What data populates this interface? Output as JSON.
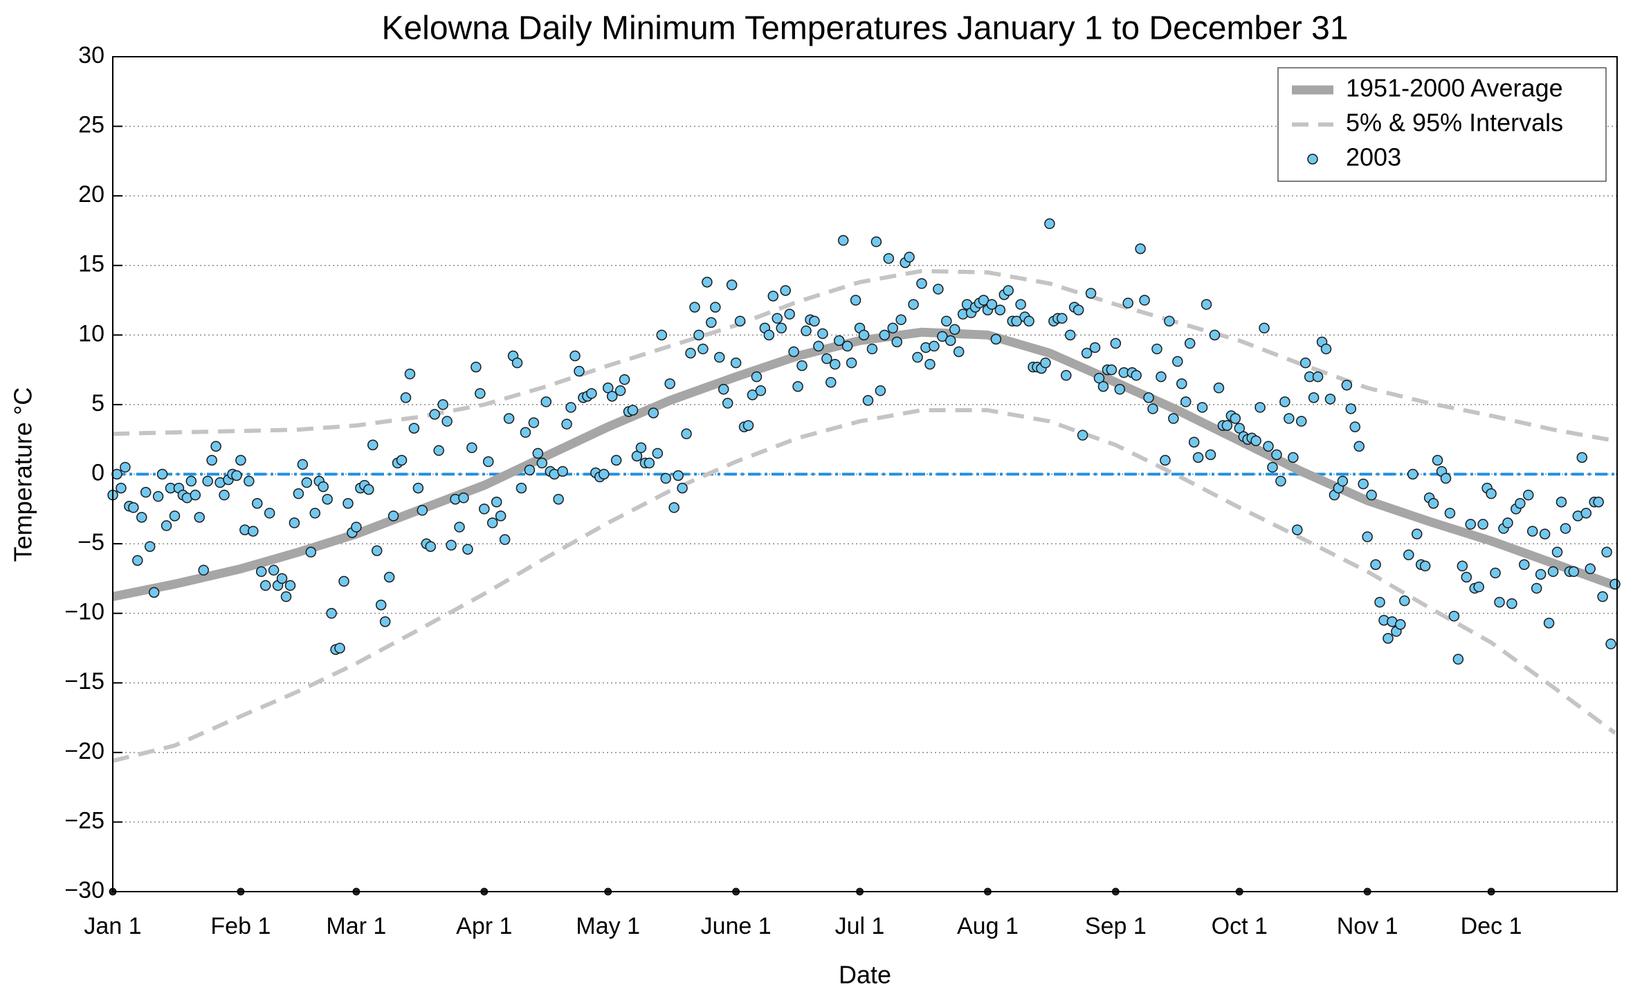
{
  "chart_data": {
    "type": "scatter",
    "title": "Kelowna Daily Minimum Temperatures January 1 to December 31",
    "xlabel": "Date",
    "ylabel": "Temperature °C",
    "xlim": [
      1,
      365.5
    ],
    "ylim": [
      -30,
      30
    ],
    "xticks": [
      {
        "value": 1,
        "label": "Jan 1"
      },
      {
        "value": 32,
        "label": "Feb 1"
      },
      {
        "value": 60,
        "label": "Mar 1"
      },
      {
        "value": 91,
        "label": "Apr 1"
      },
      {
        "value": 121,
        "label": "May 1"
      },
      {
        "value": 152,
        "label": "June 1"
      },
      {
        "value": 182,
        "label": "Jul 1"
      },
      {
        "value": 213,
        "label": "Aug 1"
      },
      {
        "value": 244,
        "label": "Sep 1"
      },
      {
        "value": 274,
        "label": "Oct 1"
      },
      {
        "value": 305,
        "label": "Nov 1"
      },
      {
        "value": 335,
        "label": "Dec 1"
      }
    ],
    "yticks": [
      {
        "value": -30,
        "label": "−30"
      },
      {
        "value": -25,
        "label": "−25"
      },
      {
        "value": -20,
        "label": "−20"
      },
      {
        "value": -15,
        "label": "−15"
      },
      {
        "value": -10,
        "label": "−10"
      },
      {
        "value": -5,
        "label": "−5"
      },
      0,
      5,
      10,
      15,
      20,
      25,
      30
    ],
    "grid": true,
    "legend": "upper right",
    "reference_line": {
      "value": 0,
      "color": "#1e8fe0"
    },
    "series": [
      {
        "name": "1951-2000 Average",
        "type": "line",
        "color": "#a6a6a6",
        "x": [
          1,
          16,
          32,
          46,
          60,
          75,
          91,
          106,
          121,
          136,
          152,
          167,
          182,
          197,
          213,
          228,
          244,
          259,
          274,
          289,
          305,
          320,
          335,
          350,
          365
        ],
        "values": [
          -8.8,
          -7.9,
          -6.8,
          -5.6,
          -4.3,
          -2.6,
          -0.8,
          1.3,
          3.4,
          5.3,
          7.0,
          8.5,
          9.6,
          10.2,
          10.0,
          8.7,
          6.6,
          4.6,
          2.4,
          0.2,
          -1.9,
          -3.4,
          -4.8,
          -6.4,
          -8.0
        ]
      },
      {
        "name": "5% & 95% Intervals",
        "type": "band",
        "color": "#c4c4c4",
        "x": [
          1,
          16,
          32,
          46,
          60,
          75,
          91,
          106,
          121,
          136,
          152,
          167,
          182,
          197,
          213,
          228,
          244,
          259,
          274,
          289,
          305,
          320,
          335,
          350,
          365
        ],
        "upper": [
          2.9,
          3.0,
          3.1,
          3.2,
          3.5,
          4.1,
          5.0,
          6.3,
          7.8,
          9.2,
          10.7,
          12.4,
          13.8,
          14.6,
          14.5,
          13.7,
          12.2,
          10.9,
          9.6,
          7.9,
          6.2,
          5.1,
          4.2,
          3.2,
          2.4
        ],
        "lower": [
          -20.6,
          -19.5,
          -17.4,
          -15.6,
          -13.6,
          -11.2,
          -8.6,
          -6.0,
          -3.5,
          -1.2,
          0.9,
          2.6,
          3.8,
          4.6,
          4.6,
          3.8,
          2.1,
          -0.1,
          -2.4,
          -4.6,
          -7.0,
          -9.6,
          -12.1,
          -15.3,
          -18.6
        ]
      },
      {
        "name": "2003",
        "type": "scatter",
        "color": "#72c8ee",
        "x": [
          1,
          2,
          3,
          4,
          5,
          6,
          7,
          8,
          9,
          10,
          11,
          12,
          13,
          14,
          15,
          16,
          17,
          18,
          19,
          20,
          21,
          22,
          23,
          24,
          25,
          26,
          27,
          28,
          29,
          30,
          31,
          32,
          33,
          34,
          35,
          36,
          37,
          38,
          39,
          40,
          41,
          42,
          43,
          44,
          45,
          46,
          47,
          48,
          49,
          50,
          51,
          52,
          53,
          54,
          55,
          56,
          57,
          58,
          59,
          60,
          61,
          62,
          63,
          64,
          65,
          66,
          67,
          68,
          69,
          70,
          71,
          72,
          73,
          74,
          75,
          76,
          77,
          78,
          79,
          80,
          81,
          82,
          83,
          84,
          85,
          86,
          87,
          88,
          89,
          90,
          91,
          92,
          93,
          94,
          95,
          96,
          97,
          98,
          99,
          100,
          101,
          102,
          103,
          104,
          105,
          106,
          107,
          108,
          109,
          110,
          111,
          112,
          113,
          114,
          115,
          116,
          117,
          118,
          119,
          120,
          121,
          122,
          123,
          124,
          125,
          126,
          127,
          128,
          129,
          130,
          131,
          132,
          133,
          134,
          135,
          136,
          137,
          138,
          139,
          140,
          141,
          142,
          143,
          144,
          145,
          146,
          147,
          148,
          149,
          150,
          151,
          152,
          153,
          154,
          155,
          156,
          157,
          158,
          159,
          160,
          161,
          162,
          163,
          164,
          165,
          166,
          167,
          168,
          169,
          170,
          171,
          172,
          173,
          174,
          175,
          176,
          177,
          178,
          179,
          180,
          181,
          182,
          183,
          184,
          185,
          186,
          187,
          188,
          189,
          190,
          191,
          192,
          193,
          194,
          195,
          196,
          197,
          198,
          199,
          200,
          201,
          202,
          203,
          204,
          205,
          206,
          207,
          208,
          209,
          210,
          211,
          212,
          213,
          214,
          215,
          216,
          217,
          218,
          219,
          220,
          221,
          222,
          223,
          224,
          225,
          226,
          227,
          228,
          229,
          230,
          231,
          232,
          233,
          234,
          235,
          236,
          237,
          238,
          239,
          240,
          241,
          242,
          243,
          244,
          245,
          246,
          247,
          248,
          249,
          250,
          251,
          252,
          253,
          254,
          255,
          256,
          257,
          258,
          259,
          260,
          261,
          262,
          263,
          264,
          265,
          266,
          267,
          268,
          269,
          270,
          271,
          272,
          273,
          274,
          275,
          276,
          277,
          278,
          279,
          280,
          281,
          282,
          283,
          284,
          285,
          286,
          287,
          288,
          289,
          290,
          291,
          292,
          293,
          294,
          295,
          296,
          297,
          298,
          299,
          300,
          301,
          302,
          303,
          304,
          305,
          306,
          307,
          308,
          309,
          310,
          311,
          312,
          313,
          314,
          315,
          316,
          317,
          318,
          319,
          320,
          321,
          322,
          323,
          324,
          325,
          326,
          327,
          328,
          329,
          330,
          331,
          332,
          333,
          334,
          335,
          336,
          337,
          338,
          339,
          340,
          341,
          342,
          343,
          344,
          345,
          346,
          347,
          348,
          349,
          350,
          351,
          352,
          353,
          354,
          355,
          356,
          357,
          358,
          359,
          360,
          361,
          362,
          363,
          364,
          365
        ],
        "values": [
          -1.5,
          0.0,
          -1.0,
          0.5,
          -2.3,
          -2.4,
          -6.2,
          -3.1,
          -1.3,
          -5.2,
          -8.5,
          -1.6,
          0.0,
          -3.7,
          -1.0,
          -3.0,
          -1.0,
          -1.5,
          -1.7,
          -0.5,
          -1.5,
          -3.1,
          -6.9,
          -0.5,
          1.0,
          2.0,
          -0.6,
          -1.5,
          -0.4,
          0.0,
          -0.1,
          1.0,
          -4.0,
          -0.5,
          -4.1,
          -2.1,
          -7.0,
          -8.0,
          -2.8,
          -6.9,
          -8.0,
          -7.5,
          -8.8,
          -8.0,
          -3.5,
          -1.4,
          0.7,
          -0.6,
          -5.6,
          -2.8,
          -0.5,
          -0.9,
          -1.8,
          -10.0,
          -12.6,
          -12.5,
          -7.7,
          -2.1,
          -4.2,
          -3.8,
          -1.0,
          -0.8,
          -1.1,
          2.1,
          -5.5,
          -9.4,
          -10.6,
          -7.4,
          -3.0,
          0.8,
          1.0,
          5.5,
          7.2,
          3.3,
          -1.0,
          -2.6,
          -5.0,
          -5.2,
          4.3,
          1.7,
          5.0,
          3.8,
          -5.1,
          -1.8,
          -3.8,
          -1.7,
          -5.4,
          1.9,
          7.7,
          5.8,
          -2.5,
          0.9,
          -3.5,
          -2.0,
          -3.0,
          -4.7,
          4.0,
          8.5,
          8.0,
          -1.0,
          3.0,
          0.3,
          3.7,
          1.5,
          0.8,
          5.2,
          0.2,
          0.0,
          -1.8,
          0.2,
          3.6,
          4.8,
          8.5,
          7.4,
          5.5,
          5.6,
          5.8,
          0.1,
          -0.2,
          0.0,
          6.2,
          5.6,
          1.0,
          6.0,
          6.8,
          4.5,
          4.6,
          1.3,
          1.9,
          0.8,
          0.8,
          4.4,
          1.5,
          10.0,
          -0.3,
          6.5,
          -2.4,
          -0.1,
          -1.0,
          2.9,
          8.7,
          12.0,
          10.0,
          9.0,
          13.8,
          10.9,
          12.0,
          8.4,
          6.1,
          5.1,
          13.6,
          8.0,
          11.0,
          3.4,
          3.5,
          5.7,
          7.0,
          6.0,
          10.5,
          10.0,
          12.8,
          11.2,
          10.5,
          13.2,
          11.5,
          8.8,
          6.3,
          7.8,
          10.3,
          11.1,
          11.0,
          9.2,
          10.1,
          8.3,
          6.6,
          7.9,
          9.6,
          16.8,
          9.2,
          8.0,
          12.5,
          10.5,
          10.0,
          5.3,
          9.0,
          16.7,
          6.0,
          10.0,
          15.5,
          10.5,
          9.5,
          11.1,
          15.2,
          15.6,
          12.2,
          8.4,
          13.7,
          9.1,
          7.9,
          9.2,
          13.3,
          9.9,
          11.0,
          9.6,
          10.4,
          8.8,
          11.5,
          12.2,
          11.6,
          12.0,
          12.3,
          12.5,
          11.8,
          12.2,
          9.7,
          11.8,
          12.9,
          13.2,
          11.0,
          11.0,
          12.2,
          11.3,
          11.0,
          7.7,
          7.7,
          7.6,
          8.0,
          18.0,
          11.0,
          11.2,
          11.2,
          7.1,
          10.0,
          12.0,
          11.8,
          2.8,
          8.7,
          13.0,
          9.1,
          6.9,
          6.3,
          7.5,
          7.5,
          9.4,
          6.1,
          7.3,
          12.3,
          7.3,
          7.1,
          16.2,
          12.5,
          5.5,
          4.7,
          9.0,
          7.0,
          1.0,
          11.0,
          4.0,
          8.1,
          6.5,
          5.2,
          9.4,
          2.3,
          1.2,
          4.8,
          12.2,
          1.4,
          10.0,
          6.2,
          3.5,
          3.5,
          4.2,
          4.0,
          3.3,
          2.7,
          2.5,
          2.6,
          2.4,
          4.8,
          10.5,
          2.0,
          0.5,
          1.4,
          -0.5,
          5.2,
          4.0,
          1.2,
          -4.0,
          3.8,
          8.0,
          7.0,
          5.5,
          7.0,
          9.5,
          9.0,
          5.4,
          -1.5,
          -1.0,
          -0.5,
          6.4,
          4.7,
          3.4,
          2.0,
          -0.7,
          -4.5,
          -1.5,
          -6.5,
          -9.2,
          -10.5,
          -11.8,
          -10.6,
          -11.3,
          -10.8,
          -9.1,
          -5.8,
          0.0,
          -4.3,
          -6.5,
          -6.6,
          -1.7,
          -2.1,
          1.0,
          0.2,
          -0.3,
          -2.8,
          -10.2,
          -13.3,
          -6.6,
          -7.4,
          -3.6,
          -8.2,
          -8.1,
          -3.6,
          -1.0,
          -1.4,
          -7.1,
          -9.2,
          -3.9,
          -3.5,
          -9.3,
          -2.5,
          -2.1,
          -6.5,
          -1.5,
          -4.1,
          -8.2,
          -7.2,
          -4.3,
          -10.7,
          -7.0,
          -5.6,
          -2.0,
          -3.9,
          -7.0,
          -7.0,
          -3.0,
          1.2,
          -2.8,
          -6.8,
          -2.0,
          -2.0,
          -8.8,
          -5.6,
          -12.2,
          -7.9
        ]
      }
    ]
  }
}
